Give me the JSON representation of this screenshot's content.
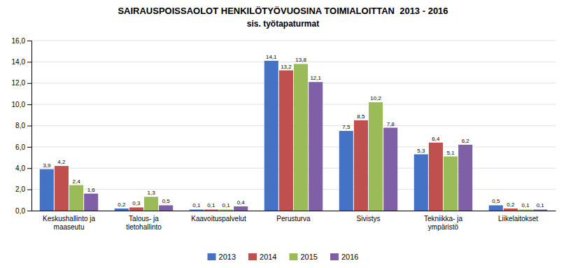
{
  "chart_data": {
    "type": "bar",
    "title": "SAIRAUSPOISSAOLOT HENKILÖTYÖVUOSINA TOIMIALOITTAN  2013 - 2016",
    "subtitle": "sis. työtapaturmat",
    "categories": [
      "Keskushallinto ja\nmaaseutu",
      "Talous- ja\ntietohallinto",
      "Kaavoituspalvelut",
      "Perusturva",
      "Sivistys",
      "Tekniikka- ja\nympäristö",
      "Liikelaitokset"
    ],
    "series": [
      {
        "name": "2013",
        "color": "#4472C4",
        "values": [
          3.9,
          0.2,
          0.1,
          14.1,
          7.5,
          5.3,
          0.5
        ],
        "value_labels": [
          "3,9",
          "0,2",
          "0,1",
          "14,1",
          "7,5",
          "5,3",
          "0,5"
        ]
      },
      {
        "name": "2014",
        "color": "#C0504D",
        "values": [
          4.2,
          0.3,
          0.1,
          13.2,
          8.5,
          6.4,
          0.2
        ],
        "value_labels": [
          "4,2",
          "0,3",
          "0,1",
          "13,2",
          "8,5",
          "6,4",
          "0,2"
        ]
      },
      {
        "name": "2015",
        "color": "#9BBB59",
        "values": [
          2.4,
          1.3,
          0.1,
          13.8,
          10.2,
          5.1,
          0.1
        ],
        "value_labels": [
          "2,4",
          "1,3",
          "0,1",
          "13,8",
          "10,2",
          "5,1",
          "0,1"
        ]
      },
      {
        "name": "2016",
        "color": "#7F5FA5",
        "values": [
          1.6,
          0.5,
          0.4,
          12.1,
          7.8,
          6.2,
          0.1
        ],
        "value_labels": [
          "1,6",
          "0,5",
          "0,4",
          "12,1",
          "7,8",
          "6,2",
          "0,1"
        ]
      }
    ],
    "ylim": [
      0,
      16.0
    ],
    "yticks": [
      {
        "value": 0.0,
        "label": "0,0"
      },
      {
        "value": 2.0,
        "label": "2,0"
      },
      {
        "value": 4.0,
        "label": "4,0"
      },
      {
        "value": 6.0,
        "label": "6,0"
      },
      {
        "value": 8.0,
        "label": "8,0"
      },
      {
        "value": 10.0,
        "label": "10,0"
      },
      {
        "value": 12.0,
        "label": "12,0"
      },
      {
        "value": 14.0,
        "label": "14,0"
      },
      {
        "value": 16.0,
        "label": "16,0"
      }
    ],
    "grid": true,
    "legend": "bottom",
    "data_labels": true
  }
}
